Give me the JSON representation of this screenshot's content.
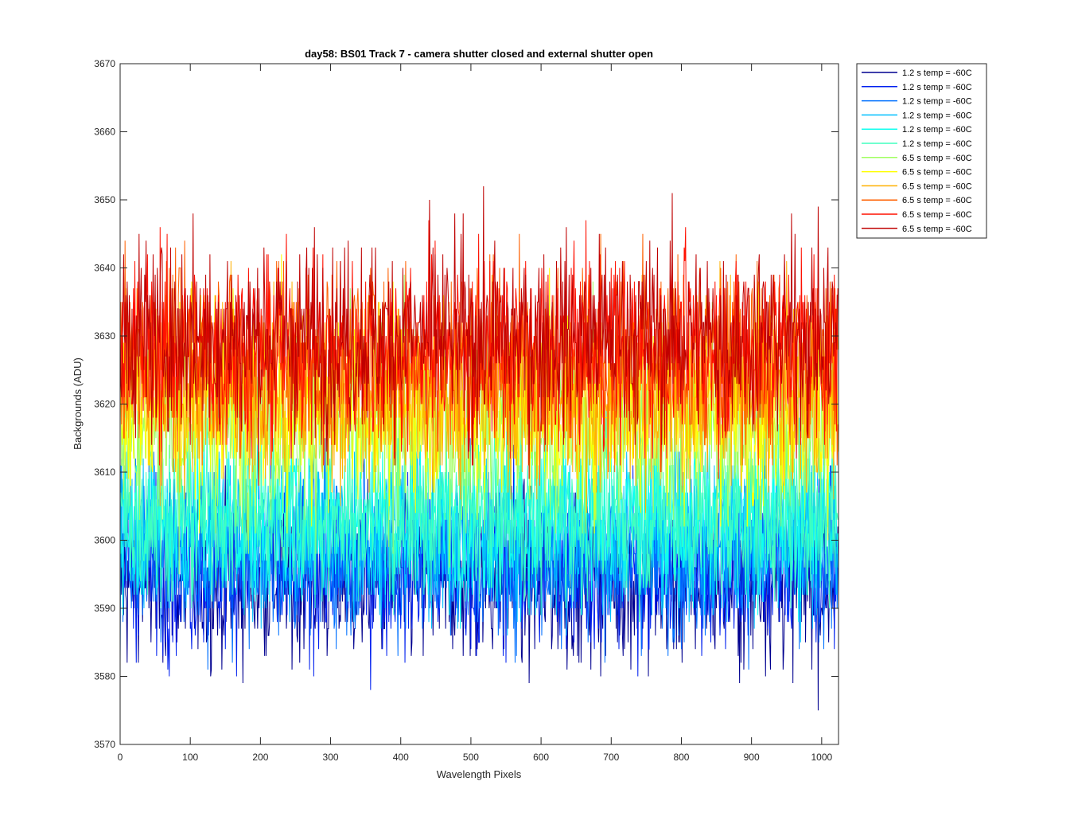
{
  "chart_data": {
    "type": "line",
    "title": "day58: BS01  Track 7 - camera shutter closed and external shutter open",
    "xlabel": "Wavelength Pixels",
    "ylabel": "Backgrounds (ADU)",
    "xlim": [
      0,
      1024
    ],
    "ylim": [
      3570,
      3670
    ],
    "xticks": [
      0,
      100,
      200,
      300,
      400,
      500,
      600,
      700,
      800,
      900,
      1000
    ],
    "yticks": [
      3570,
      3580,
      3590,
      3600,
      3610,
      3620,
      3630,
      3640,
      3650,
      3660,
      3670
    ],
    "grid": false,
    "legend_position": "outside-top-right",
    "n_points": 1024,
    "series": [
      {
        "name": "1.2 s temp = -60C",
        "color": "#00008f",
        "mean": 3594,
        "noise": 6
      },
      {
        "name": "1.2 s temp = -60C",
        "color": "#0020ef",
        "mean": 3596,
        "noise": 6
      },
      {
        "name": "1.2 s temp = -60C",
        "color": "#0070ff",
        "mean": 3598,
        "noise": 6
      },
      {
        "name": "1.2 s temp = -60C",
        "color": "#00bfff",
        "mean": 3601,
        "noise": 6
      },
      {
        "name": "1.2 s temp = -60C",
        "color": "#10ffef",
        "mean": 3603,
        "noise": 6
      },
      {
        "name": "1.2 s temp = -60C",
        "color": "#40ffbf",
        "mean": 3604,
        "noise": 6
      },
      {
        "name": "6.5 s temp = -60C",
        "color": "#a0ff60",
        "mean": 3617,
        "noise": 7
      },
      {
        "name": "6.5 s temp = -60C",
        "color": "#ffff00",
        "mean": 3620,
        "noise": 7
      },
      {
        "name": "6.5 s temp = -60C",
        "color": "#ffb000",
        "mean": 3622,
        "noise": 7
      },
      {
        "name": "6.5 s temp = -60C",
        "color": "#ff6000",
        "mean": 3627,
        "noise": 7
      },
      {
        "name": "6.5 s temp = -60C",
        "color": "#ff1000",
        "mean": 3628,
        "noise": 7
      },
      {
        "name": "6.5 s temp = -60C",
        "color": "#bf0000",
        "mean": 3630,
        "noise": 7
      }
    ]
  }
}
